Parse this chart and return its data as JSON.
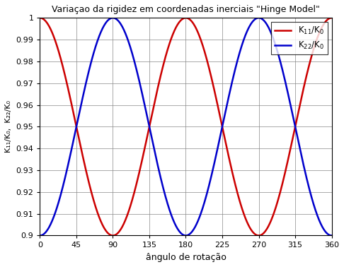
{
  "title": "Variaçao da rigidez em coordenadas inerciais \"Hinge Model\"",
  "xlabel": "ângulo de rotação",
  "ylabel": "K₁₁/K₀,  K₂₂/K₀",
  "xlim": [
    0,
    360
  ],
  "ylim": [
    0.9,
    1.0
  ],
  "yticks": [
    0.9,
    0.91,
    0.92,
    0.93,
    0.94,
    0.95,
    0.96,
    0.97,
    0.98,
    0.99,
    1.0
  ],
  "xticks": [
    0,
    45,
    90,
    135,
    180,
    225,
    270,
    315,
    360
  ],
  "line1_color": "#cc0000",
  "line2_color": "#0000cc",
  "line1_label": "K$_{11}$/K$_0$",
  "line2_label": "K$_{22}$/K$_0$",
  "amplitude": 0.1,
  "background_color": "#ffffff",
  "grid_color": "#888888",
  "linewidth": 1.8
}
